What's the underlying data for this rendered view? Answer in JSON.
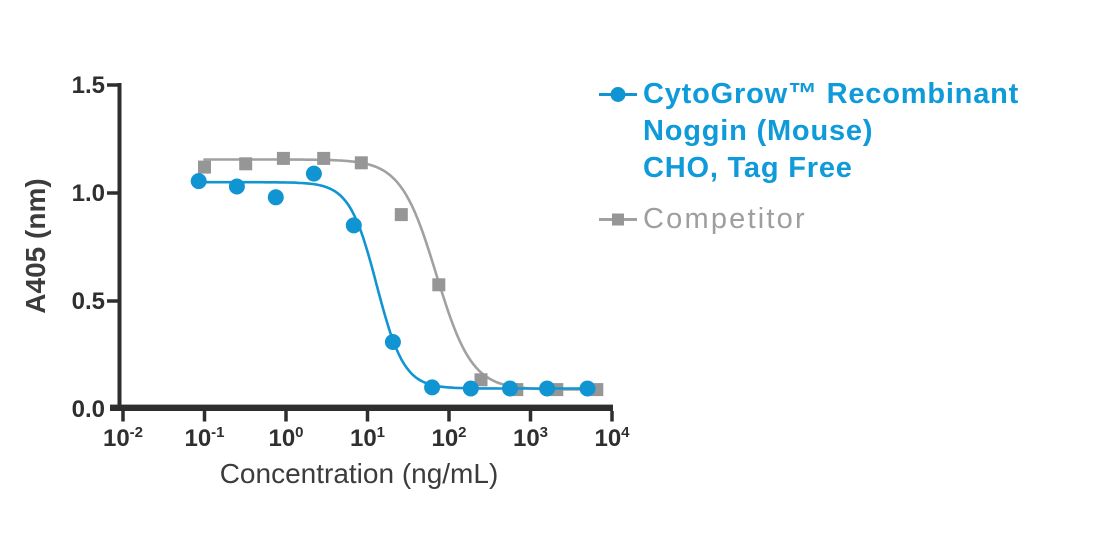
{
  "colors": {
    "accent_blue": "#1095d2",
    "legend_blue_text": "#0f9ad9",
    "gray_marker": "#969696",
    "gray_curve": "#a1a1a1",
    "competitor_text": "#9e9e9e",
    "axis": "#2e2e2e",
    "tick_label": "#2f2f2f",
    "axis_title": "#3c3c3c"
  },
  "chart_data": {
    "type": "scatter",
    "subtype": "dose-response-inhibition-curve",
    "title": "",
    "xlabel": "Concentration (ng/mL)",
    "ylabel": "A405 (nm)",
    "x_scale": "log10",
    "x_tick_exponents": [
      -2,
      -1,
      0,
      1,
      2,
      3,
      4
    ],
    "x_tick_labels": [
      "10⁻²",
      "10⁻¹",
      "10⁰",
      "10¹",
      "10²",
      "10³",
      "10⁴"
    ],
    "y_ticks": [
      0.0,
      0.5,
      1.0,
      1.5
    ],
    "ylim": [
      0.0,
      1.5
    ],
    "xlim": [
      0.01,
      10000
    ],
    "grid": false,
    "legend_position": "right",
    "series": [
      {
        "id": "cytogrow",
        "name": "CytoGrow™ Recombinant Noggin (Mouse) CHO, Tag Free",
        "marker": "circle",
        "color": "#1095d2",
        "curve_color": "#1095d2",
        "points": [
          [
            0.085,
            1.055
          ],
          [
            0.25,
            1.03
          ],
          [
            0.75,
            0.98
          ],
          [
            2.2,
            1.09
          ],
          [
            6.8,
            0.85
          ],
          [
            20.5,
            0.31
          ],
          [
            62,
            0.1
          ],
          [
            185,
            0.095
          ],
          [
            560,
            0.095
          ],
          [
            1600,
            0.095
          ],
          [
            5000,
            0.095
          ]
        ],
        "fit": {
          "top": 1.05,
          "bottom": 0.095,
          "ic50": 13,
          "hill": 2.6,
          "from": 0.085,
          "to": 5000
        }
      },
      {
        "id": "competitor",
        "name": "Competitor",
        "marker": "square",
        "color": "#969696",
        "curve_color": "#a1a1a1",
        "points": [
          [
            0.1,
            1.12
          ],
          [
            0.32,
            1.135
          ],
          [
            0.93,
            1.16
          ],
          [
            2.9,
            1.16
          ],
          [
            8.4,
            1.14
          ],
          [
            26,
            0.9
          ],
          [
            75,
            0.575
          ],
          [
            247,
            0.135
          ],
          [
            680,
            0.09
          ],
          [
            2100,
            0.09
          ],
          [
            6500,
            0.09
          ]
        ],
        "fit": {
          "top": 1.155,
          "bottom": 0.09,
          "ic50": 70,
          "hill": 2.0,
          "from": 0.1,
          "to": 6500
        }
      }
    ],
    "legend": {
      "series1_lines": [
        "CytoGrow™ Recombinant",
        "Noggin (Mouse)",
        "CHO, Tag Free"
      ],
      "series2_label": "Competitor"
    }
  }
}
